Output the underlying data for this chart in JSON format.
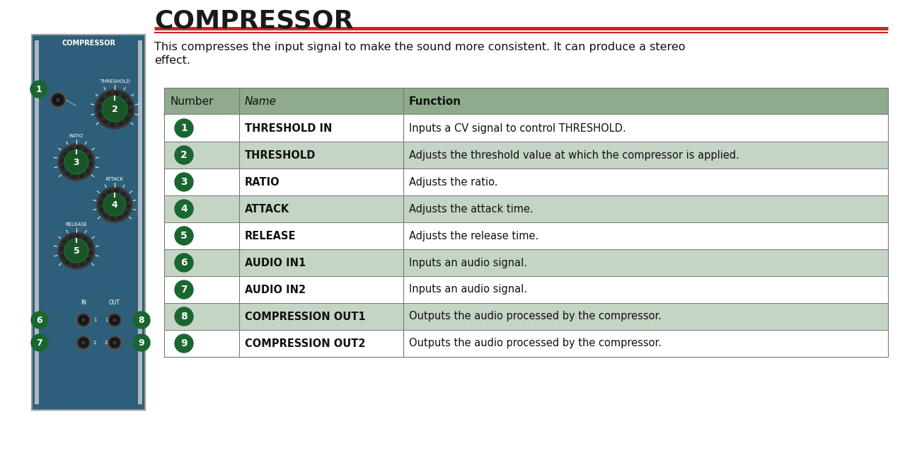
{
  "title": "COMPRESSOR",
  "title_fontsize": 26,
  "description_line1": "This compresses the input signal to make the sound more consistent. It can produce a stereo",
  "description_line2": "effect.",
  "description_fontsize": 11.5,
  "bg_color": "#ffffff",
  "red_line_color": "#cc2222",
  "table_header_bg": "#8faa8c",
  "table_row_bg_alt": "#c5d5c5",
  "table_row_bg": "#ffffff",
  "table_border_color": "#777777",
  "table_header_labels": [
    "Number",
    "Name",
    "Function"
  ],
  "table_rows": [
    [
      "1",
      "THRESHOLD IN",
      "Inputs a CV signal to control THRESHOLD."
    ],
    [
      "2",
      "THRESHOLD",
      "Adjusts the threshold value at which the compressor is applied."
    ],
    [
      "3",
      "RATIO",
      "Adjusts the ratio."
    ],
    [
      "4",
      "ATTACK",
      "Adjusts the attack time."
    ],
    [
      "5",
      "RELEASE",
      "Adjusts the release time."
    ],
    [
      "6",
      "AUDIO IN1",
      "Inputs an audio signal."
    ],
    [
      "7",
      "AUDIO IN2",
      "Inputs an audio signal."
    ],
    [
      "8",
      "COMPRESSION OUT1",
      "Outputs the audio processed by the compressor."
    ],
    [
      "9",
      "COMPRESSION OUT2",
      "Outputs the audio processed by the compressor."
    ]
  ],
  "circle_color": "#1a6630",
  "circle_text_color": "#ffffff",
  "module_bg_color": "#2d5f7a",
  "module_title": "COMPRESSOR"
}
